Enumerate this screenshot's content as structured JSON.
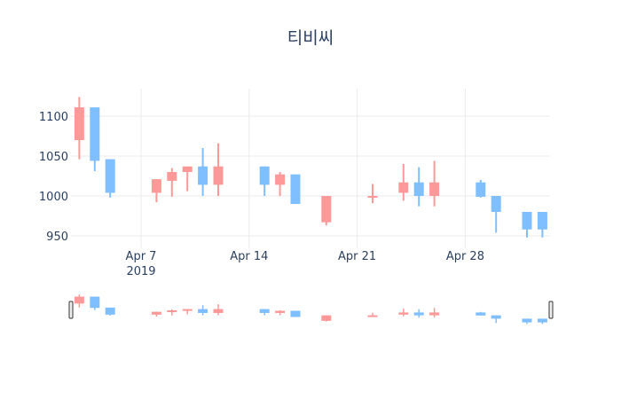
{
  "chart_data": {
    "type": "candlestick",
    "title": "티비씨",
    "xlabel": "",
    "ylabel": "",
    "ylim": [
      940,
      1135
    ],
    "y_ticks": [
      950,
      1000,
      1050,
      1100
    ],
    "x_ticks": [
      {
        "date": "2019-04-07",
        "label": "Apr 7",
        "sublabel": "2019"
      },
      {
        "date": "2019-04-14",
        "label": "Apr 14",
        "sublabel": ""
      },
      {
        "date": "2019-04-21",
        "label": "Apr 21",
        "sublabel": ""
      },
      {
        "date": "2019-04-28",
        "label": "Apr 28",
        "sublabel": ""
      }
    ],
    "grid": true,
    "rangeslider": true,
    "increasing_color": "#FF9999",
    "decreasing_color": "#7FBFFF",
    "x": [
      "2019-04-03",
      "2019-04-04",
      "2019-04-05",
      "2019-04-08",
      "2019-04-09",
      "2019-04-10",
      "2019-04-11",
      "2019-04-12",
      "2019-04-15",
      "2019-04-16",
      "2019-04-17",
      "2019-04-19",
      "2019-04-22",
      "2019-04-24",
      "2019-04-25",
      "2019-04-26",
      "2019-04-29",
      "2019-04-30",
      "2019-05-02",
      "2019-05-03"
    ],
    "open": [
      1070,
      1111,
      1046,
      1004,
      1019,
      1030,
      1037,
      1014,
      1037,
      1014,
      1027,
      967,
      998,
      1004,
      1017,
      1000,
      1017,
      1000,
      980,
      980
    ],
    "high": [
      1124,
      1111,
      1046,
      1021,
      1035,
      1037,
      1060,
      1066,
      1037,
      1030,
      1027,
      1000,
      1015,
      1040,
      1036,
      1044,
      1020,
      1000,
      980,
      980
    ],
    "low": [
      1046,
      1031,
      998,
      992,
      999,
      1006,
      1000,
      1000,
      1000,
      1000,
      990,
      963,
      991,
      994,
      987,
      987,
      998,
      954,
      948,
      948
    ],
    "close": [
      1111,
      1044,
      1004,
      1021,
      1030,
      1037,
      1014,
      1037,
      1014,
      1027,
      990,
      1000,
      1000,
      1017,
      1000,
      1017,
      999,
      980,
      958,
      958
    ]
  }
}
